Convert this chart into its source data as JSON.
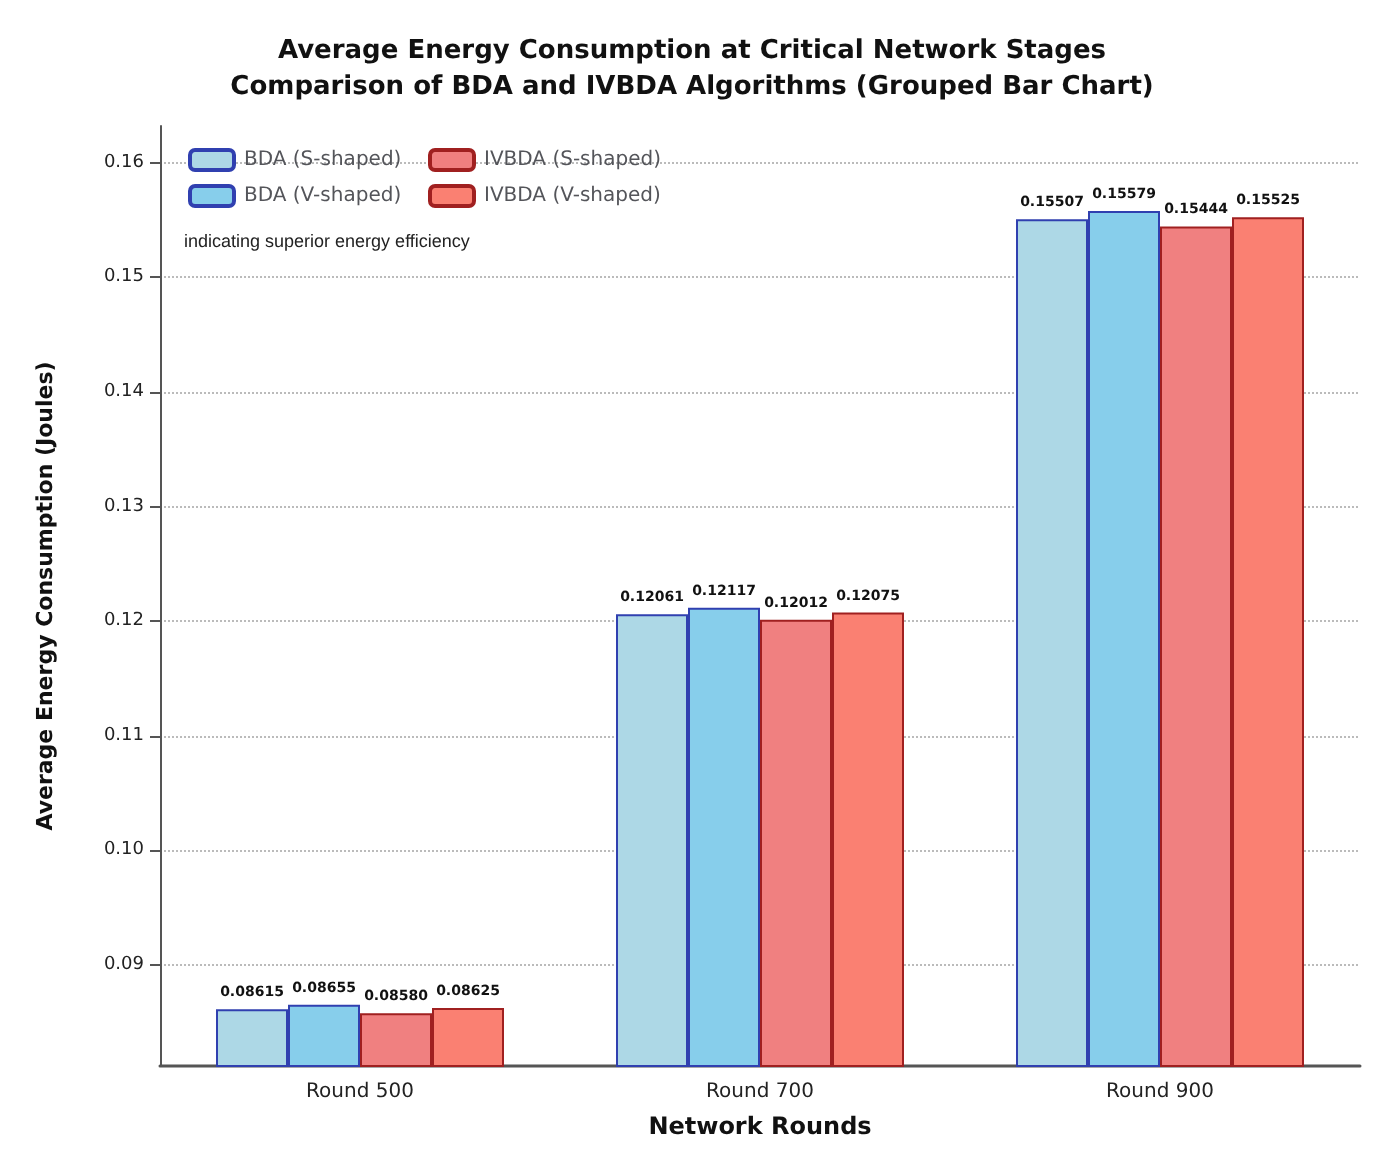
{
  "chart_data": {
    "type": "bar",
    "title": "Average Energy Consumption at Critical Network Stages\nComparison of BDA and IVBDA Algorithms (Grouped Bar Chart)",
    "xlabel": "Network Rounds",
    "ylabel": "Average Energy Consumption (Joules)",
    "categories": [
      "Round 500",
      "Round 700",
      "Round 900"
    ],
    "series": [
      {
        "name": "BDA (S-shaped)",
        "color": "#add8e6",
        "values": [
          0.08615,
          0.12061,
          0.15507
        ]
      },
      {
        "name": "BDA (V-shaped)",
        "color": "#87ceeb",
        "values": [
          0.08655,
          0.12117,
          0.15579
        ]
      },
      {
        "name": "IVBDA (S-shaped)",
        "color": "#f08080",
        "values": [
          0.0858,
          0.12012,
          0.15444
        ]
      },
      {
        "name": "IVBDA (V-shaped)",
        "color": "#fa8072",
        "values": [
          0.08625,
          0.12075,
          0.15525
        ]
      }
    ],
    "ylim": [
      0.0812,
      0.1632
    ],
    "yticks": [
      0.09,
      {
        "value": 0.1,
        "label": "0.10"
      },
      0.11,
      0.12,
      0.13,
      0.14,
      0.15,
      0.16
    ],
    "grid": "y",
    "legend": "top left",
    "value_labels": [
      [
        "0.08615",
        "0.12061",
        "0.15507"
      ],
      [
        "0.08655",
        "0.12117",
        "0.15579"
      ],
      [
        "0.08580",
        "0.12012",
        "0.15444"
      ],
      [
        "0.08625",
        "0.12075",
        "0.15525"
      ]
    ],
    "annotations": [
      "indicating superior energy efficiency"
    ]
  }
}
